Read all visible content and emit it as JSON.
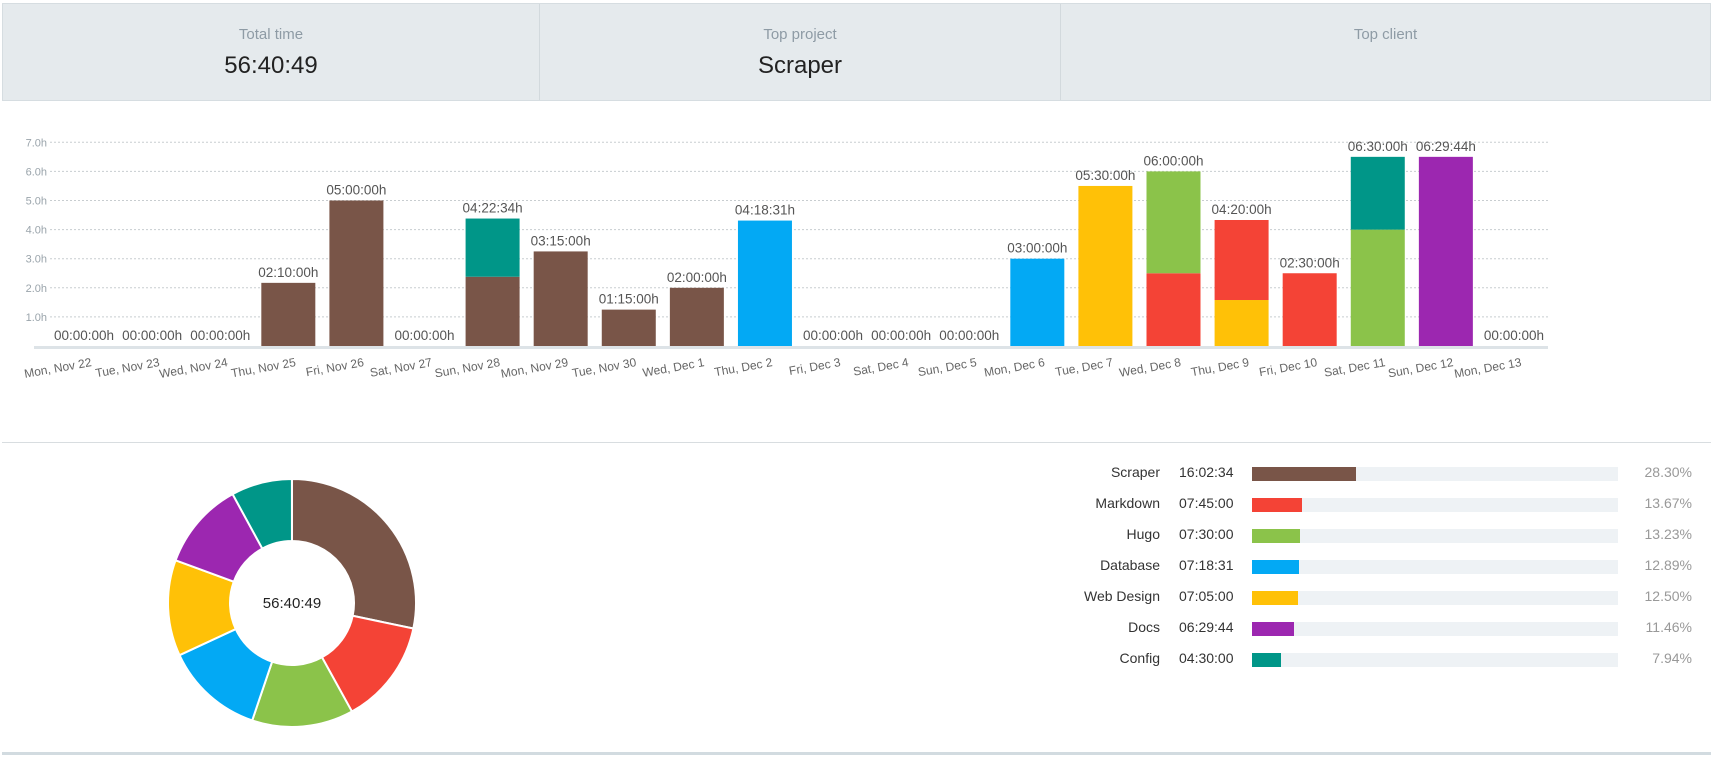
{
  "summary": {
    "total_label": "Total time",
    "total_value": "56:40:49",
    "project_label": "Top project",
    "project_value": "Scraper",
    "client_label": "Top client",
    "client_value": ""
  },
  "colors": {
    "Scraper": "#795548",
    "Markdown": "#f44336",
    "Hugo": "#8bc34a",
    "Database": "#03a9f4",
    "Web Design": "#ffc107",
    "Docs": "#9c27b0",
    "Config": "#009688"
  },
  "chart_data": [
    {
      "type": "bar",
      "stacked": true,
      "ylabel": "",
      "yticks": [
        "1.0h",
        "2.0h",
        "3.0h",
        "4.0h",
        "5.0h",
        "6.0h",
        "7.0h"
      ],
      "ylim": [
        0,
        7.0
      ],
      "grid": true,
      "categories": [
        "Mon, Nov 22",
        "Tue, Nov 23",
        "Wed, Nov 24",
        "Thu, Nov 25",
        "Fri, Nov 26",
        "Sat, Nov 27",
        "Sun, Nov 28",
        "Mon, Nov 29",
        "Tue, Nov 30",
        "Wed, Dec 1",
        "Thu, Dec 2",
        "Fri, Dec 3",
        "Sat, Dec 4",
        "Sun, Dec 5",
        "Mon, Dec 6",
        "Tue, Dec 7",
        "Wed, Dec 8",
        "Thu, Dec 9",
        "Fri, Dec 10",
        "Sat, Dec 11",
        "Sun, Dec 12",
        "Mon, Dec 13"
      ],
      "totals": [
        "00:00:00h",
        "00:00:00h",
        "00:00:00h",
        "02:10:00h",
        "05:00:00h",
        "00:00:00h",
        "04:22:34h",
        "03:15:00h",
        "01:15:00h",
        "02:00:00h",
        "04:18:31h",
        "00:00:00h",
        "00:00:00h",
        "00:00:00h",
        "03:00:00h",
        "05:30:00h",
        "06:00:00h",
        "04:20:00h",
        "02:30:00h",
        "06:30:00h",
        "06:29:44h",
        "00:00:00h"
      ],
      "series": [
        {
          "name": "Scraper",
          "values": [
            0,
            0,
            0,
            2.17,
            5.0,
            0,
            2.38,
            3.25,
            1.25,
            2.0,
            0,
            0,
            0,
            0,
            0,
            0,
            0,
            0,
            0,
            0,
            0,
            0
          ]
        },
        {
          "name": "Config",
          "values": [
            0,
            0,
            0,
            0,
            0,
            0,
            2.0,
            0,
            0,
            0,
            0,
            0,
            0,
            0,
            0,
            0,
            0,
            0,
            0,
            2.5,
            0,
            0
          ]
        },
        {
          "name": "Database",
          "values": [
            0,
            0,
            0,
            0,
            0,
            0,
            0,
            0,
            0,
            0,
            4.31,
            0,
            0,
            0,
            3.0,
            0,
            0,
            0,
            0,
            0,
            0,
            0
          ]
        },
        {
          "name": "Web Design",
          "values": [
            0,
            0,
            0,
            0,
            0,
            0,
            0,
            0,
            0,
            0,
            0,
            0,
            0,
            0,
            0,
            5.5,
            0,
            1.58,
            0,
            0,
            0,
            0
          ]
        },
        {
          "name": "Markdown",
          "values": [
            0,
            0,
            0,
            0,
            0,
            0,
            0,
            0,
            0,
            0,
            0,
            0,
            0,
            0,
            0,
            0,
            2.5,
            2.75,
            2.5,
            0,
            0,
            0
          ]
        },
        {
          "name": "Hugo",
          "values": [
            0,
            0,
            0,
            0,
            0,
            0,
            0,
            0,
            0,
            0,
            0,
            0,
            0,
            0,
            0,
            0,
            3.5,
            0,
            0,
            4.0,
            0,
            0
          ]
        },
        {
          "name": "Docs",
          "values": [
            0,
            0,
            0,
            0,
            0,
            0,
            0,
            0,
            0,
            0,
            0,
            0,
            0,
            0,
            0,
            0,
            0,
            0,
            0,
            0,
            6.5,
            0
          ]
        }
      ],
      "stack_order": [
        [],
        [],
        [],
        [
          "Scraper"
        ],
        [
          "Scraper"
        ],
        [],
        [
          "Scraper",
          "Config"
        ],
        [
          "Scraper"
        ],
        [
          "Scraper"
        ],
        [
          "Scraper"
        ],
        [
          "Database"
        ],
        [],
        [],
        [],
        [
          "Database"
        ],
        [
          "Web Design"
        ],
        [
          "Markdown",
          "Hugo"
        ],
        [
          "Web Design",
          "Markdown"
        ],
        [
          "Markdown"
        ],
        [
          "Hugo",
          "Config"
        ],
        [
          "Docs"
        ],
        []
      ]
    },
    {
      "type": "pie",
      "donut": true,
      "center_label": "56:40:49",
      "slices": [
        {
          "name": "Scraper",
          "time": "16:02:34",
          "percent": 28.3
        },
        {
          "name": "Markdown",
          "time": "07:45:00",
          "percent": 13.67
        },
        {
          "name": "Hugo",
          "time": "07:30:00",
          "percent": 13.23
        },
        {
          "name": "Database",
          "time": "07:18:31",
          "percent": 12.89
        },
        {
          "name": "Web Design",
          "time": "07:05:00",
          "percent": 12.5
        },
        {
          "name": "Docs",
          "time": "06:29:44",
          "percent": 11.46
        },
        {
          "name": "Config",
          "time": "04:30:00",
          "percent": 7.94
        }
      ],
      "legend_pct_labels": [
        "28.30%",
        "13.67%",
        "13.23%",
        "12.89%",
        "12.50%",
        "11.46%",
        "7.94%"
      ],
      "legend_scale_max_percent": 100
    }
  ]
}
